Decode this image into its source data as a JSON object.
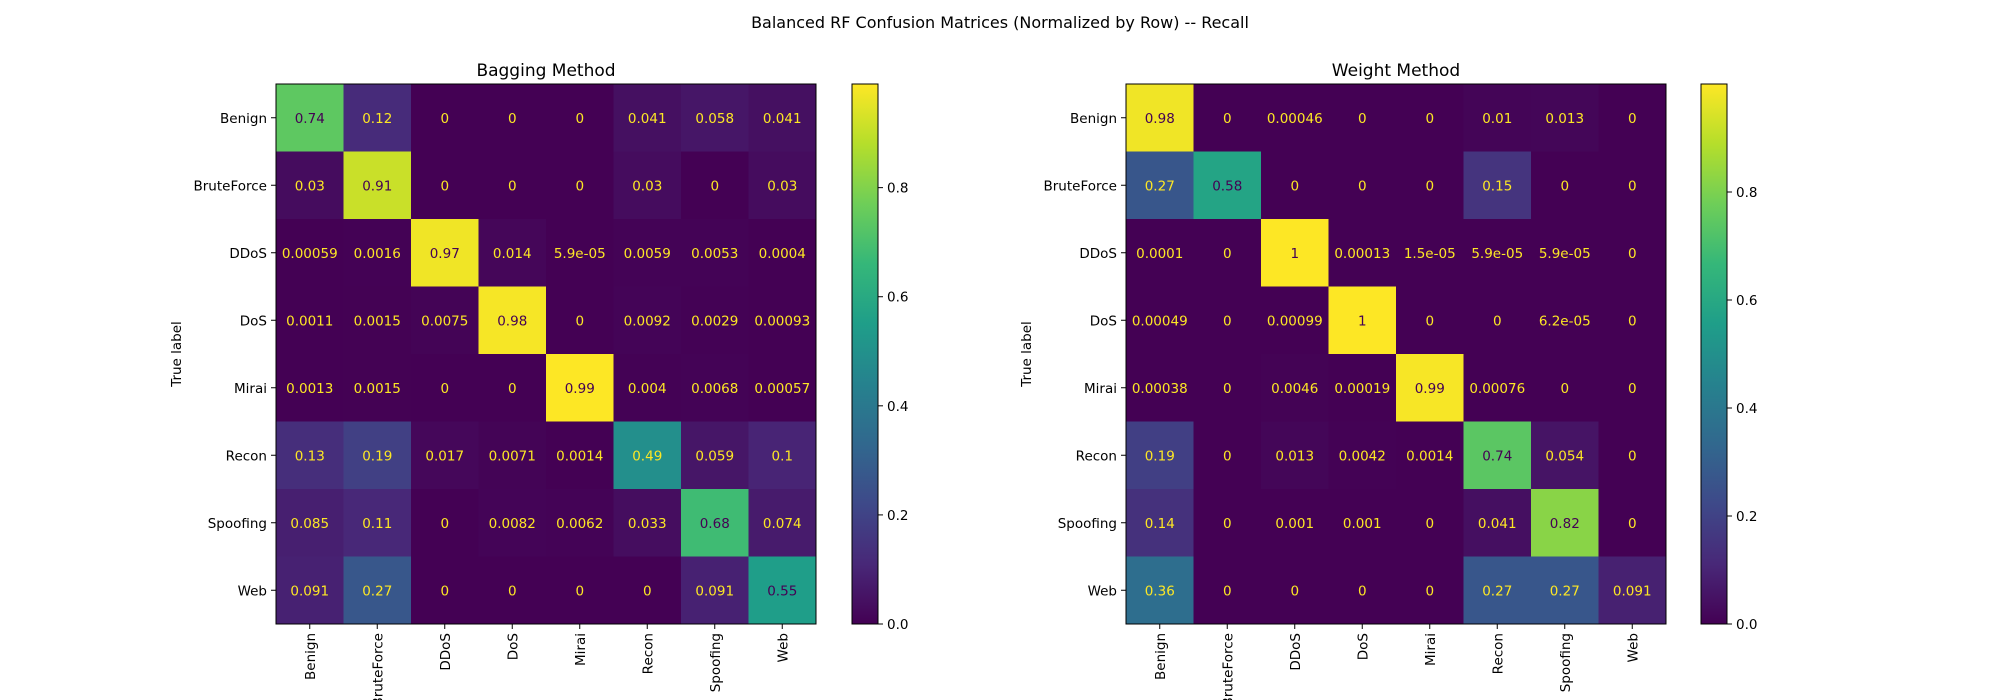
{
  "figure": {
    "suptitle": "Balanced RF Confusion Matrices (Normalized by Row) -- Recall"
  },
  "colormap": {
    "name": "viridis",
    "stops": [
      "#440154",
      "#482878",
      "#3e4989",
      "#31688e",
      "#26828e",
      "#1f9e89",
      "#35b779",
      "#6ece58",
      "#b5de2b",
      "#fde725"
    ],
    "light_text_color": "#fde725",
    "dark_text_color": "#440154"
  },
  "chart_data": [
    {
      "type": "heatmap",
      "title": "Bagging Method",
      "xlabel": "",
      "ylabel": "True label",
      "categories": [
        "Benign",
        "BruteForce",
        "DDoS",
        "DoS",
        "Mirai",
        "Recon",
        "Spoofing",
        "Web"
      ],
      "row_labels": [
        "Benign",
        "BruteForce",
        "DDoS",
        "DoS",
        "Mirai",
        "Recon",
        "Spoofing",
        "Web"
      ],
      "colorbar_range": [
        0,
        0.99
      ],
      "colorbar_ticks": [
        "0.0",
        "0.2",
        "0.4",
        "0.6",
        "0.8"
      ],
      "colorbar_tick_values": [
        0,
        0.2,
        0.4,
        0.6,
        0.8
      ],
      "cells": [
        [
          "0.74",
          "0.12",
          "0",
          "0",
          "0",
          "0.041",
          "0.058",
          "0.041"
        ],
        [
          "0.03",
          "0.91",
          "0",
          "0",
          "0",
          "0.03",
          "0",
          "0.03"
        ],
        [
          "0.00059",
          "0.0016",
          "0.97",
          "0.014",
          "5.9e-05",
          "0.0059",
          "0.0053",
          "0.0004"
        ],
        [
          "0.0011",
          "0.0015",
          "0.0075",
          "0.98",
          "0",
          "0.0092",
          "0.0029",
          "0.00093"
        ],
        [
          "0.0013",
          "0.0015",
          "0",
          "0",
          "0.99",
          "0.004",
          "0.0068",
          "0.00057"
        ],
        [
          "0.13",
          "0.19",
          "0.017",
          "0.0071",
          "0.0014",
          "0.49",
          "0.059",
          "0.1"
        ],
        [
          "0.085",
          "0.11",
          "0",
          "0.0082",
          "0.0062",
          "0.033",
          "0.68",
          "0.074"
        ],
        [
          "0.091",
          "0.27",
          "0",
          "0",
          "0",
          "0",
          "0.091",
          "0.55"
        ]
      ]
    },
    {
      "type": "heatmap",
      "title": "Weight Method",
      "xlabel": "",
      "ylabel": "True label",
      "categories": [
        "Benign",
        "BruteForce",
        "DDoS",
        "DoS",
        "Mirai",
        "Recon",
        "Spoofing",
        "Web"
      ],
      "row_labels": [
        "Benign",
        "BruteForce",
        "DDoS",
        "DoS",
        "Mirai",
        "Recon",
        "Spoofing",
        "Web"
      ],
      "colorbar_range": [
        0,
        1
      ],
      "colorbar_ticks": [
        "0.0",
        "0.2",
        "0.4",
        "0.6",
        "0.8"
      ],
      "colorbar_tick_values": [
        0,
        0.2,
        0.4,
        0.6,
        0.8
      ],
      "cells": [
        [
          "0.98",
          "0",
          "0.00046",
          "0",
          "0",
          "0.01",
          "0.013",
          "0"
        ],
        [
          "0.27",
          "0.58",
          "0",
          "0",
          "0",
          "0.15",
          "0",
          "0"
        ],
        [
          "0.0001",
          "0",
          "1",
          "0.00013",
          "1.5e-05",
          "5.9e-05",
          "5.9e-05",
          "0"
        ],
        [
          "0.00049",
          "0",
          "0.00099",
          "1",
          "0",
          "0",
          "6.2e-05",
          "0"
        ],
        [
          "0.00038",
          "0",
          "0.0046",
          "0.00019",
          "0.99",
          "0.00076",
          "0",
          "0"
        ],
        [
          "0.19",
          "0",
          "0.013",
          "0.0042",
          "0.0014",
          "0.74",
          "0.054",
          "0"
        ],
        [
          "0.14",
          "0",
          "0.001",
          "0.001",
          "0",
          "0.041",
          "0.82",
          "0"
        ],
        [
          "0.36",
          "0",
          "0",
          "0",
          "0",
          "0.27",
          "0.27",
          "0.091"
        ]
      ]
    }
  ]
}
